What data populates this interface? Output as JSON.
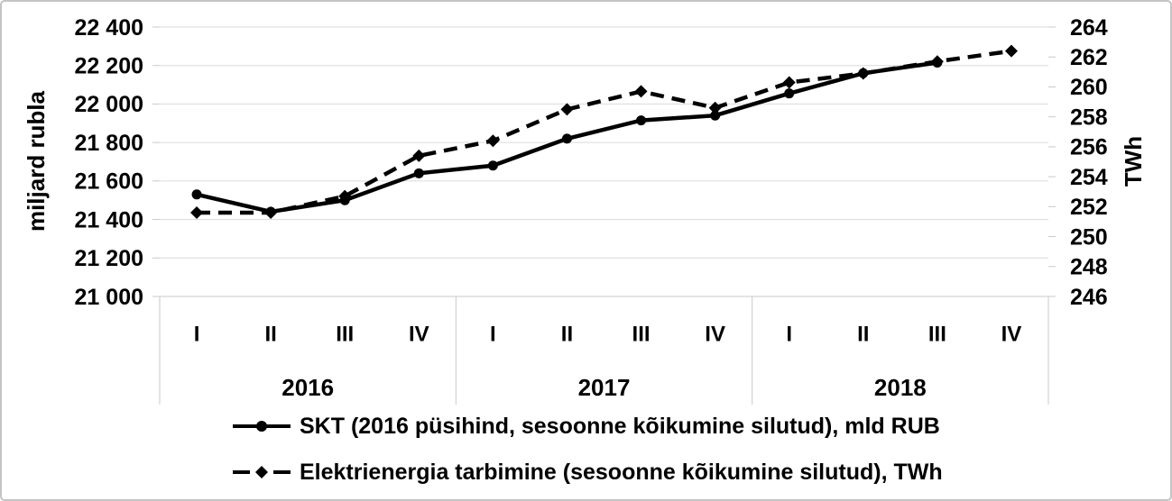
{
  "chart_data": {
    "type": "line",
    "title": "",
    "x_categories": {
      "quarters": [
        "I",
        "II",
        "III",
        "IV",
        "I",
        "II",
        "III",
        "IV",
        "I",
        "II",
        "III",
        "IV"
      ],
      "years": [
        {
          "label": "2016",
          "quarters": 4
        },
        {
          "label": "2017",
          "quarters": 4
        },
        {
          "label": "2018",
          "quarters": 4
        }
      ]
    },
    "left_axis": {
      "title": "miljard rubla",
      "min": 21000,
      "max": 22400,
      "step": 200,
      "tick_labels": [
        "22 400",
        "22 200",
        "22 000",
        "21 800",
        "21 600",
        "21 400",
        "21 200",
        "21 000"
      ]
    },
    "right_axis": {
      "title": "TWh",
      "min": 246,
      "max": 264,
      "step": 2,
      "tick_labels": [
        "264",
        "262",
        "260",
        "258",
        "256",
        "254",
        "252",
        "250",
        "248",
        "246"
      ]
    },
    "series": [
      {
        "name": "SKT (2016 püsihind, sesoonne kõikumine silutud), mld RUB",
        "axis": "left",
        "line_style": "solid",
        "marker": "circle",
        "values": [
          21530,
          21440,
          21500,
          21640,
          21680,
          21820,
          21915,
          21940,
          22055,
          22160,
          22215,
          null
        ]
      },
      {
        "name": "Elektrienergia tarbimine (sesoonne kõikumine silutud), TWh",
        "axis": "right",
        "line_style": "dashed",
        "marker": "diamond",
        "values": [
          251.6,
          251.6,
          252.7,
          255.4,
          256.4,
          258.5,
          259.7,
          258.6,
          260.3,
          260.9,
          261.7,
          262.4
        ]
      }
    ],
    "grid": true,
    "legend_position": "bottom",
    "colors": {
      "series": "#000000",
      "grid": "#dadada",
      "axis_line": "#c9c9c9",
      "text": "#000000",
      "background": "#ffffff"
    }
  }
}
